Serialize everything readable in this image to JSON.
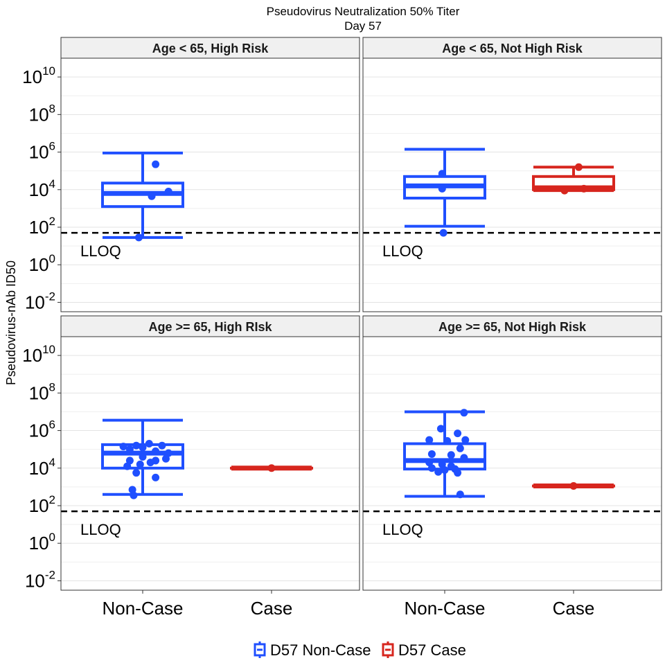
{
  "chart_data": {
    "type": "box",
    "title": "Pseudovirus Neutralization 50% Titer",
    "subtitle": "Day 57",
    "ylabel": "Pseudovirus-nAb ID50",
    "yscale": "log10",
    "ylim_log10": [
      -2.5,
      11
    ],
    "ytick_bases": [
      "10",
      "10",
      "10",
      "10",
      "10",
      "10",
      "10"
    ],
    "ytick_exponents": [
      "-2",
      "0",
      "2",
      "4",
      "6",
      "8",
      "10"
    ],
    "categories": [
      "Non-Case",
      "Case"
    ],
    "lloq": {
      "label": "LLOQ",
      "value_log10": 1.7
    },
    "colors": {
      "Non-Case": "#1f4fff",
      "Case": "#d7261e"
    },
    "legend": {
      "position": "bottom",
      "entries": [
        "D57 Non-Case",
        "D57 Case"
      ]
    },
    "panels": [
      {
        "title": "Age < 65, High Risk",
        "boxes": [
          {
            "category": "Non-Case",
            "whisker_low": 1.45,
            "q1": 3.1,
            "median": 3.8,
            "q3": 4.35,
            "whisker_high": 5.95,
            "points": [
              [
                1.1,
                5.35
              ],
              [
                1.2,
                3.9
              ],
              [
                0.97,
                1.45
              ],
              [
                1.07,
                3.65
              ]
            ]
          }
        ]
      },
      {
        "title": "Age < 65, Not High Risk",
        "boxes": [
          {
            "category": "Non-Case",
            "whisker_low": 2.05,
            "q1": 3.55,
            "median": 4.2,
            "q3": 4.7,
            "whisker_high": 6.15,
            "points": [
              [
                0.98,
                4.85
              ],
              [
                0.98,
                4.05
              ],
              [
                0.99,
                1.7
              ]
            ]
          },
          {
            "category": "Case",
            "whisker_low": 3.95,
            "q1": 4.0,
            "median": 4.1,
            "q3": 4.7,
            "whisker_high": 5.2,
            "points": [
              [
                2.04,
                5.2
              ],
              [
                1.93,
                3.95
              ],
              [
                2.08,
                4.05
              ]
            ]
          }
        ]
      },
      {
        "title": "Age >= 65, High RIsk",
        "boxes": [
          {
            "category": "Non-Case",
            "whisker_low": 2.6,
            "q1": 4.0,
            "median": 4.8,
            "q3": 5.25,
            "whisker_high": 6.55,
            "points": [
              [
                0.85,
                5.15
              ],
              [
                0.9,
                5.0
              ],
              [
                0.95,
                5.2
              ],
              [
                1.0,
                5.1
              ],
              [
                1.05,
                5.3
              ],
              [
                1.1,
                4.9
              ],
              [
                1.15,
                5.2
              ],
              [
                1.2,
                4.8
              ],
              [
                0.9,
                4.4
              ],
              [
                1.0,
                4.6
              ],
              [
                1.1,
                4.4
              ],
              [
                1.18,
                4.5
              ],
              [
                0.88,
                4.1
              ],
              [
                0.98,
                4.2
              ],
              [
                1.06,
                4.3
              ],
              [
                0.95,
                3.75
              ],
              [
                1.1,
                3.5
              ],
              [
                0.92,
                2.85
              ],
              [
                0.93,
                2.55
              ]
            ]
          },
          {
            "category": "Case",
            "whisker_low": 4.0,
            "q1": 4.0,
            "median": 4.0,
            "q3": 4.0,
            "whisker_high": 4.0,
            "points": [
              [
                2.0,
                4.0
              ]
            ]
          }
        ]
      },
      {
        "title": "Age >= 65, Not High Risk",
        "boxes": [
          {
            "category": "Non-Case",
            "whisker_low": 2.5,
            "q1": 3.95,
            "median": 4.4,
            "q3": 5.3,
            "whisker_high": 7.0,
            "points": [
              [
                1.15,
                6.95
              ],
              [
                0.97,
                6.1
              ],
              [
                1.1,
                5.85
              ],
              [
                0.88,
                5.5
              ],
              [
                1.02,
                5.45
              ],
              [
                1.16,
                5.5
              ],
              [
                1.12,
                5.05
              ],
              [
                0.9,
                4.75
              ],
              [
                1.05,
                4.7
              ],
              [
                1.15,
                4.55
              ],
              [
                0.88,
                4.3
              ],
              [
                0.98,
                4.2
              ],
              [
                1.05,
                4.1
              ],
              [
                0.9,
                4.0
              ],
              [
                1.0,
                3.9
              ],
              [
                1.08,
                3.95
              ],
              [
                0.95,
                3.8
              ],
              [
                1.1,
                3.75
              ],
              [
                1.12,
                2.6
              ]
            ]
          },
          {
            "category": "Case",
            "whisker_low": 3.05,
            "q1": 3.05,
            "median": 3.05,
            "q3": 3.05,
            "whisker_high": 3.05,
            "points": [
              [
                2.0,
                3.05
              ]
            ]
          }
        ]
      }
    ]
  }
}
